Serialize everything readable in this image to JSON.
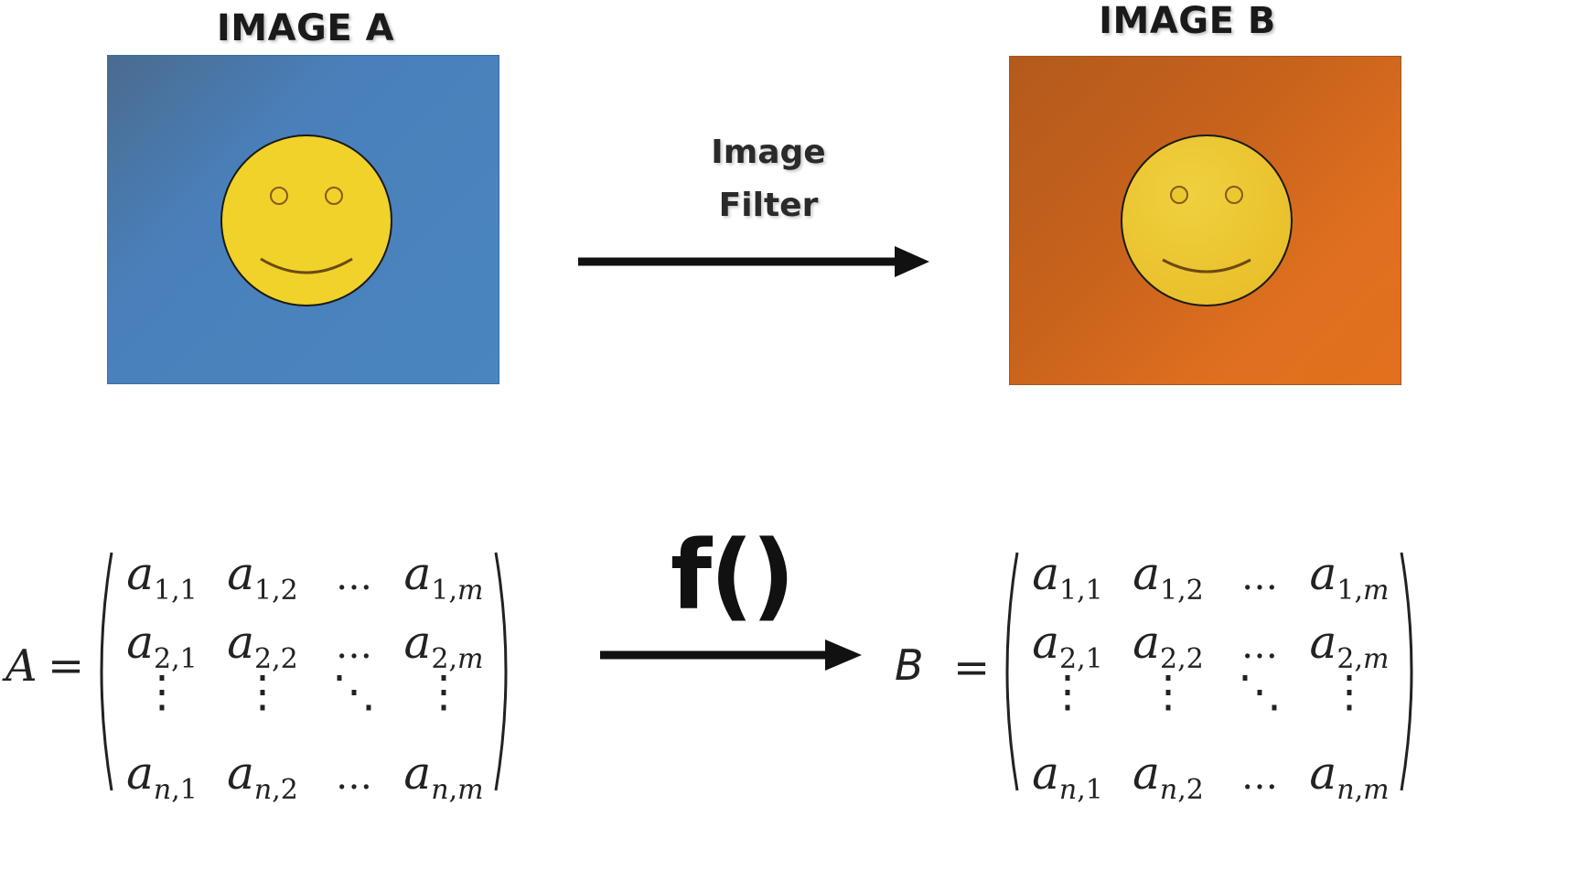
{
  "top": {
    "image_a_title": "IMAGE A",
    "image_b_title": "IMAGE B",
    "filter_line1": "Image",
    "filter_line2": "Filter"
  },
  "bottom": {
    "function_label": "f()",
    "matrix_a_name": "A",
    "matrix_b_name": "B",
    "equals": "="
  },
  "matrix": {
    "rows": [
      {
        "type": "entries",
        "cells": [
          {
            "base": "a",
            "sub_row": "1",
            "sub_col": "1"
          },
          {
            "base": "a",
            "sub_row": "1",
            "sub_col": "2"
          },
          {
            "dots": "…"
          },
          {
            "base": "a",
            "sub_row": "1",
            "sub_col": "m"
          }
        ]
      },
      {
        "type": "entries",
        "cells": [
          {
            "base": "a",
            "sub_row": "2",
            "sub_col": "1"
          },
          {
            "base": "a",
            "sub_row": "2",
            "sub_col": "2"
          },
          {
            "dots": "…"
          },
          {
            "base": "a",
            "sub_row": "2",
            "sub_col": "m"
          }
        ]
      },
      {
        "type": "dots",
        "cells": [
          "⋮",
          "⋮",
          "⋱",
          "⋮"
        ]
      },
      {
        "type": "entries",
        "cells": [
          {
            "base": "a",
            "sub_row": "n",
            "sub_col": "1"
          },
          {
            "base": "a",
            "sub_row": "n",
            "sub_col": "2"
          },
          {
            "dots": "…"
          },
          {
            "base": "a",
            "sub_row": "n",
            "sub_col": "m"
          }
        ]
      }
    ]
  },
  "colors": {
    "panel_a": "#4a85bf",
    "panel_b": "#e0701f",
    "smiley_face": "#f1d22a",
    "smiley_outline": "#1a1a1a",
    "eye_ring": "#8a5a1a"
  }
}
